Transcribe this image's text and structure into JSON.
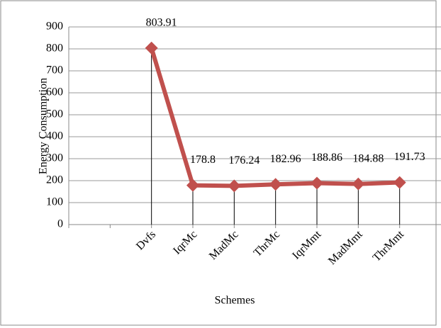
{
  "chart_data": {
    "type": "line",
    "categories": [
      null,
      null,
      "Dvfs",
      "IqrMc",
      "MadMc",
      "ThrMc",
      "IqrMmt",
      "MadMmt",
      "ThrMmt"
    ],
    "series": [
      {
        "name": "Energy Consumption",
        "color": "#c0504d",
        "values": [
          null,
          null,
          803.91,
          178.8,
          176.24,
          182.96,
          188.86,
          184.88,
          191.73
        ]
      }
    ],
    "xlabel": "Schemes",
    "ylabel": "Energy Consumption",
    "ylim": [
      0,
      900
    ],
    "yticks": [
      0,
      100,
      200,
      300,
      400,
      500,
      600,
      700,
      800,
      900
    ],
    "grid": true,
    "drop_lines": true
  }
}
